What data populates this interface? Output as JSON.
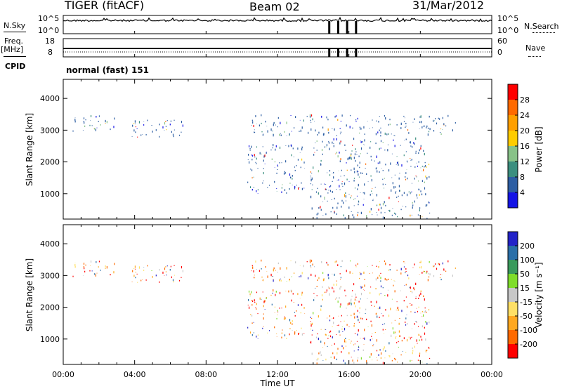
{
  "header": {
    "station": "TIGER (fitACF)",
    "beam": "Beam 02",
    "date": "31/Mar/2012"
  },
  "top_panels": {
    "nsky_label": "N.Sky",
    "nsearch_label": "N.Search",
    "nsky_ticks": [
      "10^5",
      "10^0"
    ],
    "nsearch_ticks": [
      "10^5",
      "10^0"
    ],
    "freq_label": "Freq.",
    "freq_unit": "[MHz]",
    "freq_ticks": [
      "18",
      "8"
    ],
    "nave_label": "Nave",
    "nave_ticks": [
      "60",
      "0"
    ],
    "cpid_label": "CPID",
    "cpid_text": "normal (fast) 151"
  },
  "power_colorbar": {
    "label": "Power [dB]",
    "ticks": [
      "28",
      "24",
      "20",
      "16",
      "12",
      "8",
      "4"
    ],
    "colors": [
      "#ff0000",
      "#ff6a00",
      "#ff9f00",
      "#ffcc00",
      "#88c288",
      "#3b8f7f",
      "#2d5ea3",
      "#1414e6"
    ]
  },
  "velocity_colorbar": {
    "label": "Velocity [m s⁻¹]",
    "ticks": [
      "200",
      "100",
      "50",
      "15",
      "-15",
      "-50",
      "-100",
      "-200"
    ],
    "colors": [
      "#2323c8",
      "#2a6fa8",
      "#3a9a5c",
      "#7fdd2a",
      "#c8c8c8",
      "#ffe066",
      "#ffa820",
      "#ff6a00",
      "#ff0000"
    ]
  },
  "chart_data": [
    {
      "type": "heatmap",
      "panel": "power",
      "ylabel": "Slant Range [km]",
      "ylim": [
        200,
        4600
      ],
      "yticks": [
        "4000",
        "3000",
        "2000",
        "1000"
      ],
      "xlim": [
        0,
        24
      ],
      "xticks": [
        "00:00",
        "04:00",
        "08:00",
        "12:00",
        "16:00",
        "20:00",
        "00:00"
      ],
      "echo_regions": [
        {
          "t": [
            0.5,
            3.0
          ],
          "r": [
            2950,
            3450
          ]
        },
        {
          "t": [
            3.8,
            6.8
          ],
          "r": [
            2750,
            3350
          ]
        },
        {
          "t": [
            10.5,
            22.0
          ],
          "r": [
            2800,
            3450
          ]
        },
        {
          "t": [
            10.3,
            13.5
          ],
          "r": [
            1000,
            2500
          ]
        },
        {
          "t": [
            13.8,
            20.5
          ],
          "r": [
            200,
            2700
          ]
        }
      ]
    },
    {
      "type": "heatmap",
      "panel": "velocity",
      "ylabel": "Slant Range [km]",
      "ylim": [
        200,
        4600
      ],
      "yticks": [
        "4000",
        "3000",
        "2000",
        "1000"
      ],
      "xlim": [
        0,
        24
      ],
      "xticks": [
        "00:00",
        "04:00",
        "08:00",
        "12:00",
        "16:00",
        "20:00",
        "00:00"
      ],
      "xlabel": "Time UT",
      "echo_regions": [
        {
          "t": [
            0.5,
            3.0
          ],
          "r": [
            2950,
            3450
          ]
        },
        {
          "t": [
            3.8,
            6.8
          ],
          "r": [
            2750,
            3350
          ]
        },
        {
          "t": [
            10.5,
            22.0
          ],
          "r": [
            2800,
            3450
          ]
        },
        {
          "t": [
            10.3,
            13.5
          ],
          "r": [
            1000,
            2500
          ]
        },
        {
          "t": [
            13.8,
            20.5
          ],
          "r": [
            200,
            2700
          ]
        }
      ]
    }
  ]
}
